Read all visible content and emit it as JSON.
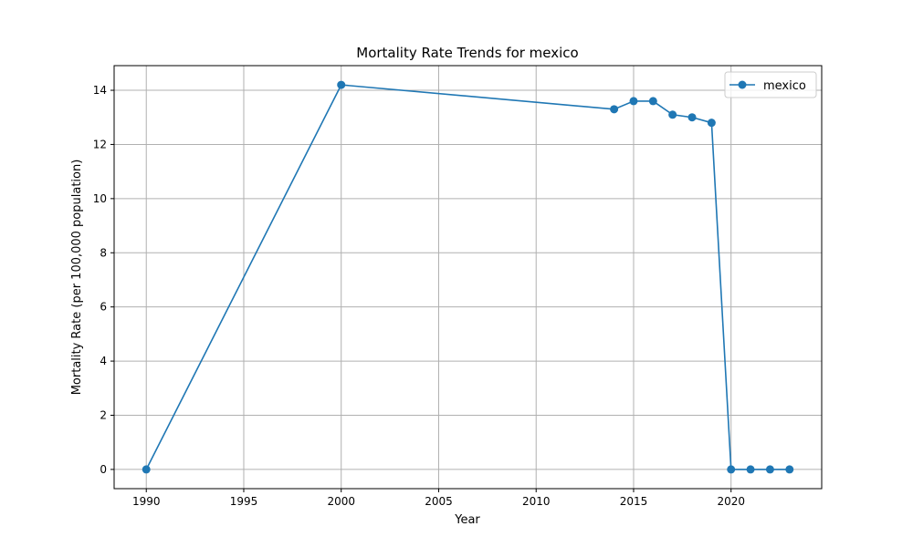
{
  "chart_data": {
    "type": "line",
    "title": "Mortality Rate Trends for mexico",
    "xlabel": "Year",
    "ylabel": "Mortality Rate (per 100,000 population)",
    "xlim": [
      1988.35,
      2024.65
    ],
    "ylim": [
      -0.71,
      14.91
    ],
    "x_ticks": [
      1990,
      1995,
      2000,
      2005,
      2010,
      2015,
      2020
    ],
    "y_ticks": [
      0,
      2,
      4,
      6,
      8,
      10,
      12,
      14
    ],
    "grid": true,
    "legend_position": "top-right",
    "series": [
      {
        "name": "mexico",
        "color": "#1f77b4",
        "marker": "circle",
        "x": [
          1990,
          2000,
          2014,
          2015,
          2016,
          2017,
          2018,
          2019,
          2020,
          2021,
          2022,
          2023
        ],
        "y": [
          0,
          14.2,
          13.3,
          13.6,
          13.6,
          13.1,
          13.0,
          12.8,
          0,
          0,
          0,
          0
        ]
      }
    ]
  }
}
